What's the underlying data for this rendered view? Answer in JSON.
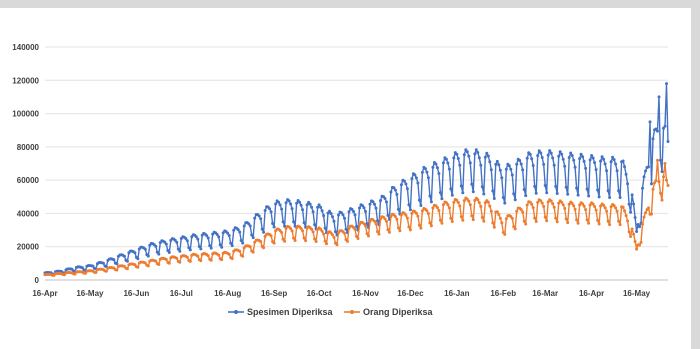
{
  "chart_data": {
    "type": "line",
    "title": "",
    "xlabel": "",
    "ylabel": "",
    "ylim": [
      0,
      140000
    ],
    "y_ticks": [
      "0",
      "20000",
      "40000",
      "60000",
      "80000",
      "100000",
      "120000",
      "140000"
    ],
    "x_ticks": [
      "16-Apr",
      "16-May",
      "16-Jun",
      "16-Jul",
      "16-Aug",
      "16-Sep",
      "16-Oct",
      "16-Nov",
      "16-Dec",
      "16-Jan",
      "16-Feb",
      "16-Mar",
      "16-Apr",
      "16-May"
    ],
    "grid": "horizontal",
    "legend_position": "bottom",
    "x_start": "2020-04-16",
    "x_end": "2021-06-06",
    "series": [
      {
        "name": "Spesimen Diperiksa",
        "color": "#4472c4",
        "points": [
          [
            "2020-04-16",
            4000
          ],
          [
            "2020-04-26",
            5000
          ],
          [
            "2020-05-06",
            7000
          ],
          [
            "2020-05-16",
            8000
          ],
          [
            "2020-05-26",
            10500
          ],
          [
            "2020-06-06",
            14000
          ],
          [
            "2020-06-16",
            17000
          ],
          [
            "2020-06-26",
            20000
          ],
          [
            "2020-07-06",
            22000
          ],
          [
            "2020-07-16",
            23500
          ],
          [
            "2020-07-26",
            25000
          ],
          [
            "2020-08-06",
            26000
          ],
          [
            "2020-08-16",
            27000
          ],
          [
            "2020-08-26",
            30000
          ],
          [
            "2020-09-06",
            37000
          ],
          [
            "2020-09-16",
            43000
          ],
          [
            "2020-09-26",
            44000
          ],
          [
            "2020-10-06",
            43000
          ],
          [
            "2020-10-16",
            41000
          ],
          [
            "2020-10-26",
            36000
          ],
          [
            "2020-11-06",
            39000
          ],
          [
            "2020-11-16",
            42000
          ],
          [
            "2020-11-26",
            45000
          ],
          [
            "2020-12-06",
            52000
          ],
          [
            "2020-12-16",
            57000
          ],
          [
            "2020-12-26",
            62000
          ],
          [
            "2021-01-06",
            66000
          ],
          [
            "2021-01-16",
            70000
          ],
          [
            "2021-01-26",
            72000
          ],
          [
            "2021-02-06",
            69000
          ],
          [
            "2021-02-16",
            62000
          ],
          [
            "2021-02-26",
            66000
          ],
          [
            "2021-03-06",
            70000
          ],
          [
            "2021-03-16",
            71000
          ],
          [
            "2021-03-26",
            70000
          ],
          [
            "2021-04-06",
            69000
          ],
          [
            "2021-04-16",
            68000
          ],
          [
            "2021-04-26",
            67000
          ],
          [
            "2021-05-06",
            67000
          ],
          [
            "2021-05-12",
            55000
          ],
          [
            "2021-05-16",
            28000
          ],
          [
            "2021-05-20",
            52000
          ],
          [
            "2021-05-26",
            78000
          ],
          [
            "2021-06-01",
            90000
          ],
          [
            "2021-06-06",
            80000
          ]
        ],
        "spikes": [
          [
            "2021-05-25",
            95000
          ],
          [
            "2021-05-31",
            110000
          ],
          [
            "2021-06-05",
            118000
          ]
        ]
      },
      {
        "name": "Orang Diperiksa",
        "color": "#ed7d31",
        "points": [
          [
            "2020-04-16",
            3000
          ],
          [
            "2020-04-26",
            3800
          ],
          [
            "2020-05-06",
            4500
          ],
          [
            "2020-05-16",
            5200
          ],
          [
            "2020-05-26",
            6500
          ],
          [
            "2020-06-06",
            8000
          ],
          [
            "2020-06-16",
            9500
          ],
          [
            "2020-06-26",
            11000
          ],
          [
            "2020-07-06",
            12500
          ],
          [
            "2020-07-16",
            13500
          ],
          [
            "2020-07-26",
            14500
          ],
          [
            "2020-08-06",
            15000
          ],
          [
            "2020-08-16",
            15500
          ],
          [
            "2020-08-26",
            18000
          ],
          [
            "2020-09-06",
            23000
          ],
          [
            "2020-09-16",
            28000
          ],
          [
            "2020-09-26",
            30000
          ],
          [
            "2020-10-06",
            30000
          ],
          [
            "2020-10-16",
            29000
          ],
          [
            "2020-10-26",
            26000
          ],
          [
            "2020-11-06",
            30000
          ],
          [
            "2020-11-16",
            33000
          ],
          [
            "2020-11-26",
            35000
          ],
          [
            "2020-12-06",
            37000
          ],
          [
            "2020-12-16",
            38000
          ],
          [
            "2020-12-26",
            40000
          ],
          [
            "2021-01-06",
            43000
          ],
          [
            "2021-01-16",
            45000
          ],
          [
            "2021-01-26",
            46000
          ],
          [
            "2021-02-06",
            44000
          ],
          [
            "2021-02-16",
            34000
          ],
          [
            "2021-02-26",
            40000
          ],
          [
            "2021-03-06",
            44000
          ],
          [
            "2021-03-16",
            45000
          ],
          [
            "2021-03-26",
            44000
          ],
          [
            "2021-04-06",
            43000
          ],
          [
            "2021-04-16",
            43000
          ],
          [
            "2021-04-26",
            42000
          ],
          [
            "2021-05-06",
            42000
          ],
          [
            "2021-05-12",
            33000
          ],
          [
            "2021-05-16",
            18000
          ],
          [
            "2021-05-20",
            32000
          ],
          [
            "2021-05-26",
            50000
          ],
          [
            "2021-06-01",
            62000
          ],
          [
            "2021-06-06",
            55000
          ]
        ],
        "spikes": [
          [
            "2021-05-30",
            72000
          ],
          [
            "2021-06-04",
            70000
          ]
        ]
      }
    ]
  }
}
